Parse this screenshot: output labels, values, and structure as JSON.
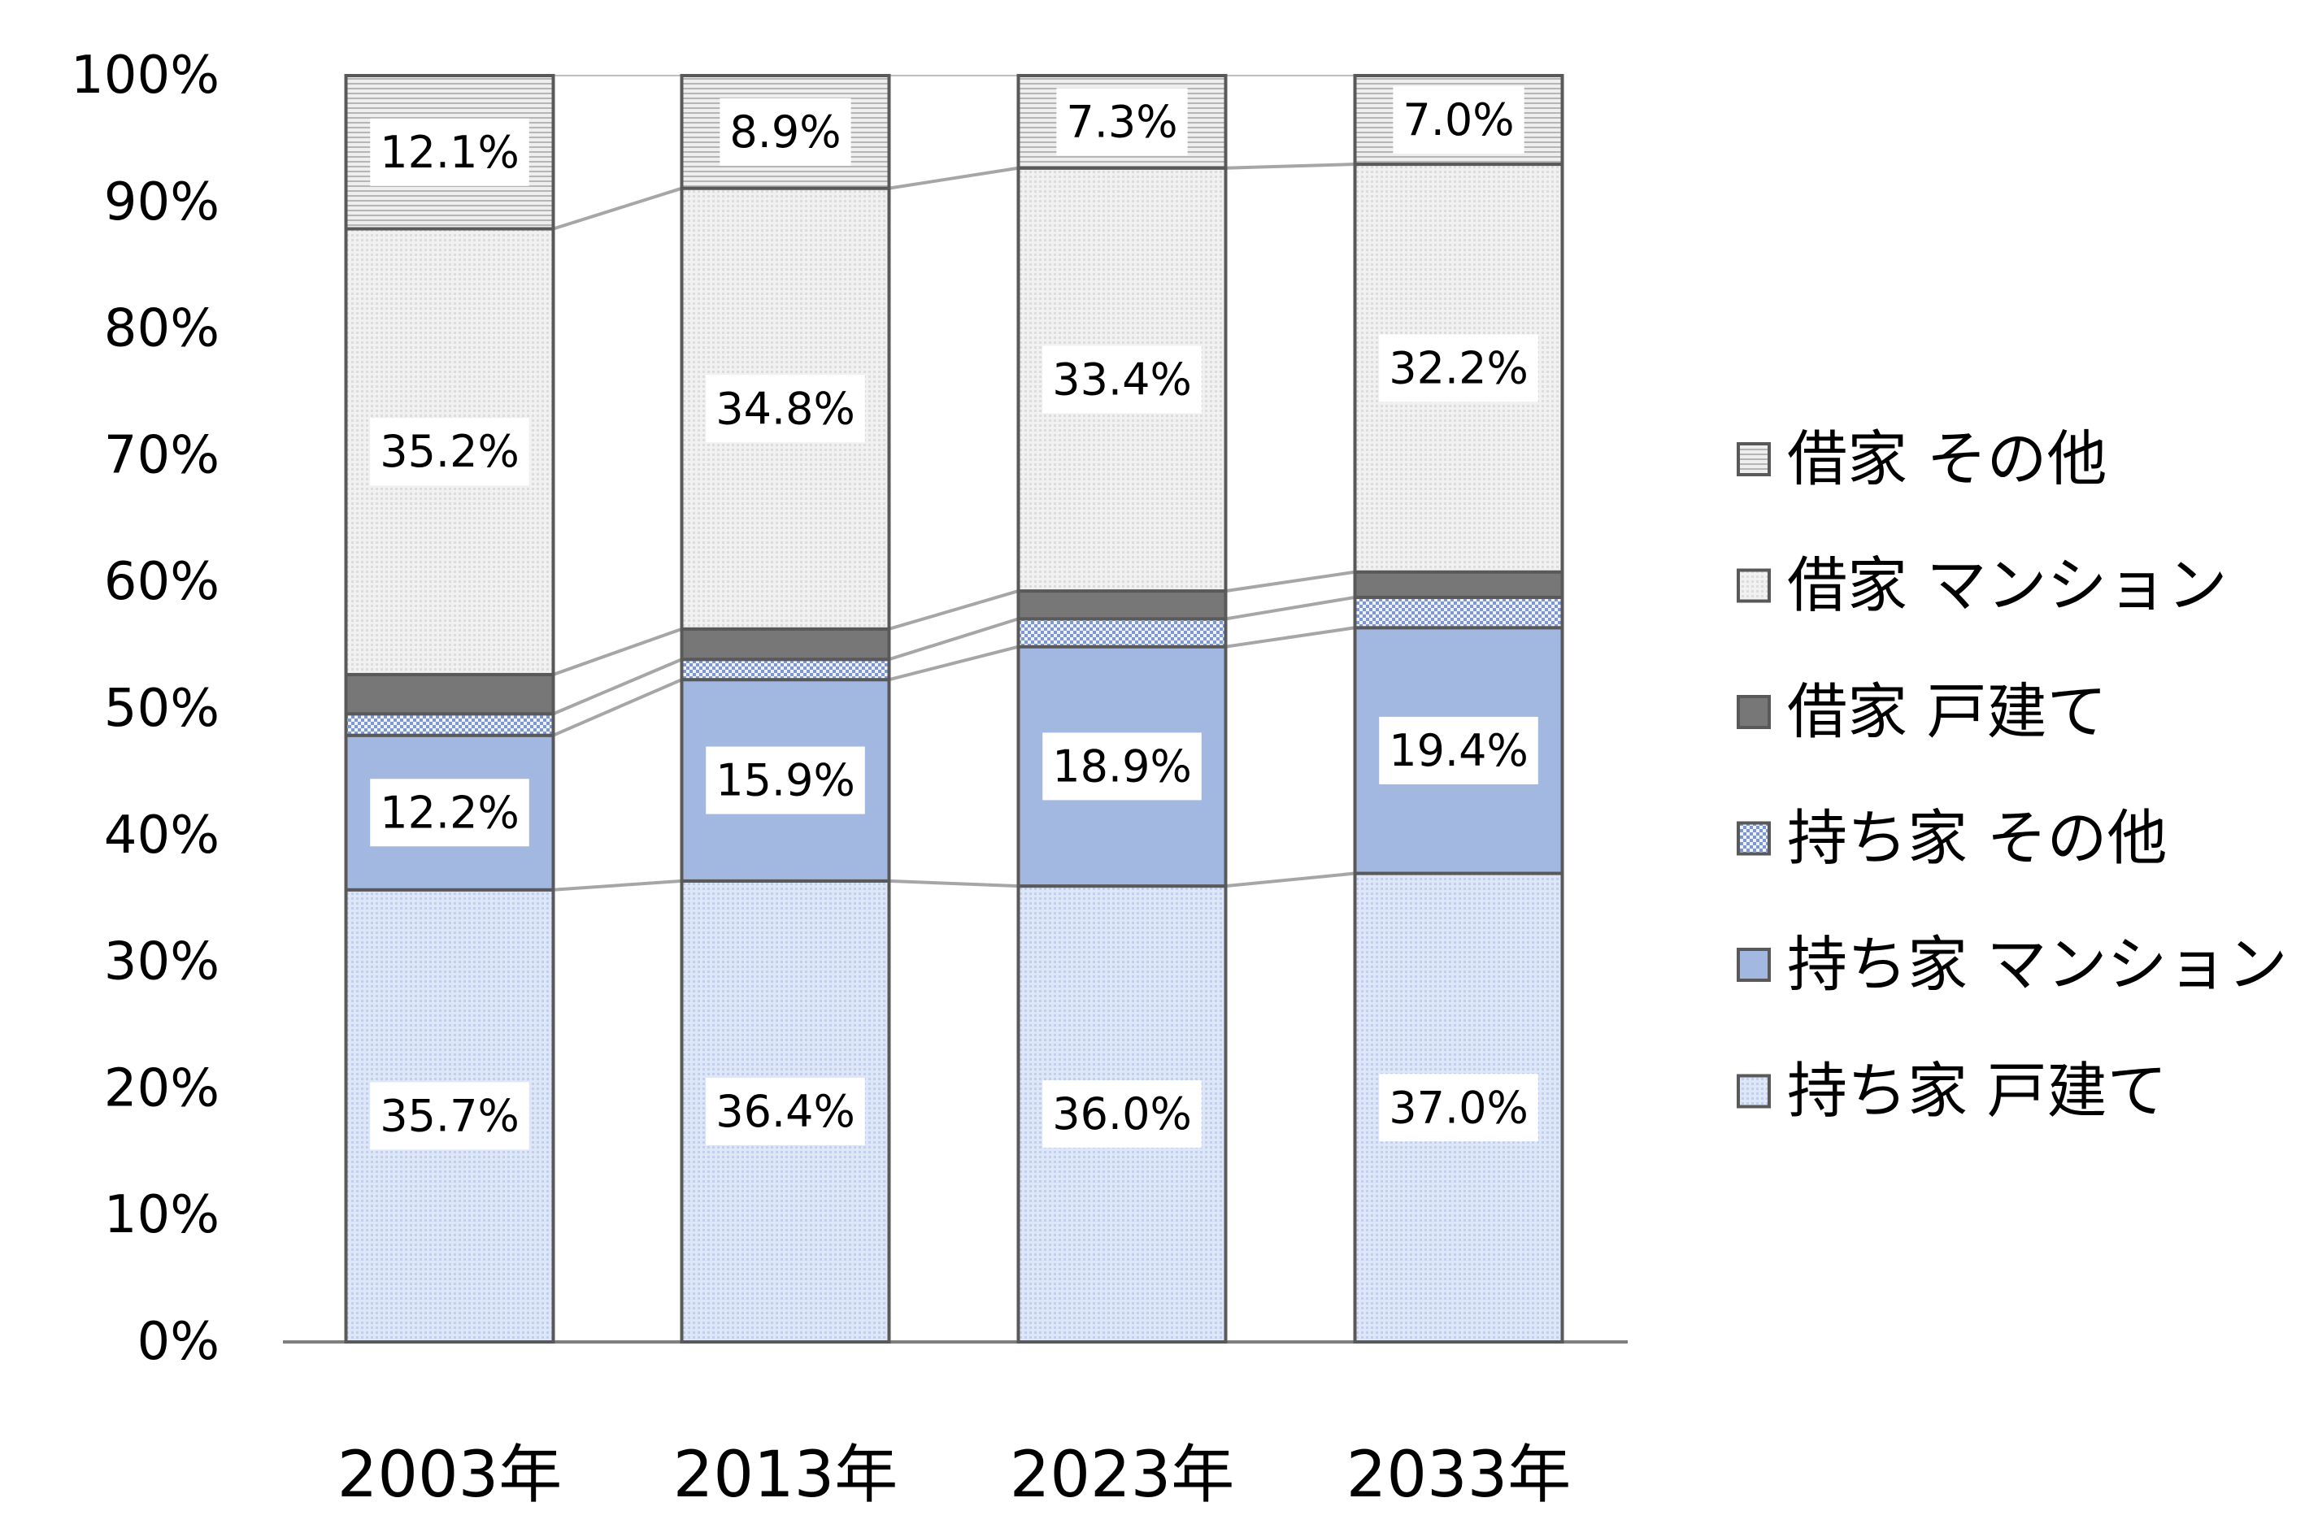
{
  "chart_data": {
    "type": "bar",
    "stacked": true,
    "percent": true,
    "categories": [
      "2003年",
      "2013年",
      "2023年",
      "2033年"
    ],
    "ylim": [
      0,
      100
    ],
    "yticks": [
      "0%",
      "10%",
      "20%",
      "30%",
      "40%",
      "50%",
      "60%",
      "70%",
      "80%",
      "90%",
      "100%"
    ],
    "series_lines": true,
    "legend_position": "right",
    "series": [
      {
        "name": "持ち家 戸建て",
        "values": [
          35.7,
          36.4,
          36.0,
          37.0
        ],
        "labels": [
          "35.7%",
          "36.4%",
          "36.0%",
          "37.0%"
        ],
        "color": "#d5def1",
        "pattern": "fine-dots"
      },
      {
        "name": "持ち家 マンション",
        "values": [
          12.2,
          15.9,
          18.9,
          19.4
        ],
        "labels": [
          "12.2%",
          "15.9%",
          "18.9%",
          "19.4%"
        ],
        "color": "#a3b8e0",
        "pattern": "solid"
      },
      {
        "name": "持ち家 その他",
        "values": [
          1.7,
          1.6,
          2.2,
          2.4
        ],
        "labels": [
          "",
          "",
          "",
          ""
        ],
        "color": "#a3b8e0",
        "pattern": "checker"
      },
      {
        "name": "借家 戸建て",
        "values": [
          3.1,
          2.4,
          2.2,
          2.0
        ],
        "labels": [
          "",
          "",
          "",
          ""
        ],
        "color": "#777777",
        "pattern": "solid"
      },
      {
        "name": "借家 マンション",
        "values": [
          35.2,
          34.8,
          33.4,
          32.2
        ],
        "labels": [
          "35.2%",
          "34.8%",
          "33.4%",
          "32.2%"
        ],
        "color": "#ececec",
        "pattern": "fine-dots"
      },
      {
        "name": "借家 その他",
        "values": [
          12.1,
          8.9,
          7.3,
          7.0
        ],
        "labels": [
          "12.1%",
          "8.9%",
          "7.3%",
          "7.0%"
        ],
        "color": "#d4d4d4",
        "pattern": "horizontal-lines"
      }
    ]
  }
}
